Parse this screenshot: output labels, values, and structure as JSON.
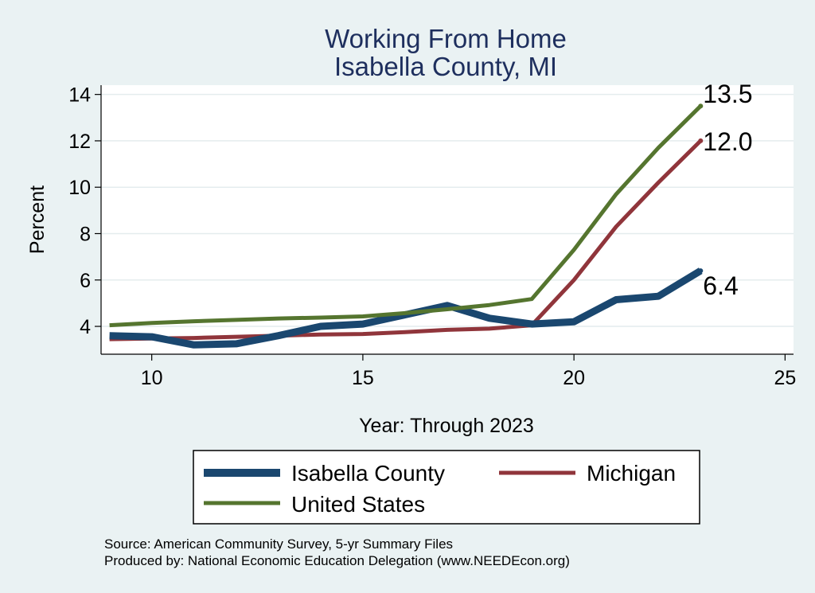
{
  "chart_data": {
    "type": "line",
    "title": [
      "Working From Home",
      "Isabella County, MI"
    ],
    "xlabel": "Year: Through 2023",
    "ylabel": "Percent",
    "xlim": [
      8.8,
      25.2
    ],
    "ylim": [
      2.8,
      14.4
    ],
    "xticks": [
      10,
      15,
      20,
      25
    ],
    "yticks": [
      4,
      6,
      8,
      10,
      12,
      14
    ],
    "grid": true,
    "legend_position": "bottom",
    "x": [
      9,
      10,
      11,
      12,
      13,
      14,
      15,
      16,
      17,
      18,
      19,
      20,
      21,
      22,
      23
    ],
    "series": [
      {
        "name": "Isabella County",
        "color": "#1a476f",
        "values": [
          3.6,
          3.55,
          3.2,
          3.25,
          3.6,
          4.0,
          4.1,
          4.5,
          4.9,
          4.35,
          4.1,
          4.2,
          5.15,
          5.3,
          6.4
        ],
        "end_label": "6.4"
      },
      {
        "name": "Michigan",
        "color": "#90353b",
        "values": [
          3.45,
          3.48,
          3.5,
          3.55,
          3.6,
          3.65,
          3.67,
          3.75,
          3.85,
          3.9,
          4.05,
          6.0,
          8.3,
          10.2,
          12.0
        ],
        "end_label": "12.0"
      },
      {
        "name": "United States",
        "color": "#55752f",
        "values": [
          4.05,
          4.15,
          4.22,
          4.28,
          4.34,
          4.38,
          4.43,
          4.57,
          4.74,
          4.92,
          5.18,
          7.3,
          9.7,
          11.7,
          13.5
        ],
        "end_label": "13.5"
      }
    ]
  },
  "footer": {
    "source": "Source: American Community Survey, 5-yr Summary Files",
    "produced": "Produced by: National Economic Education Delegation (www.NEEDEcon.org)"
  }
}
